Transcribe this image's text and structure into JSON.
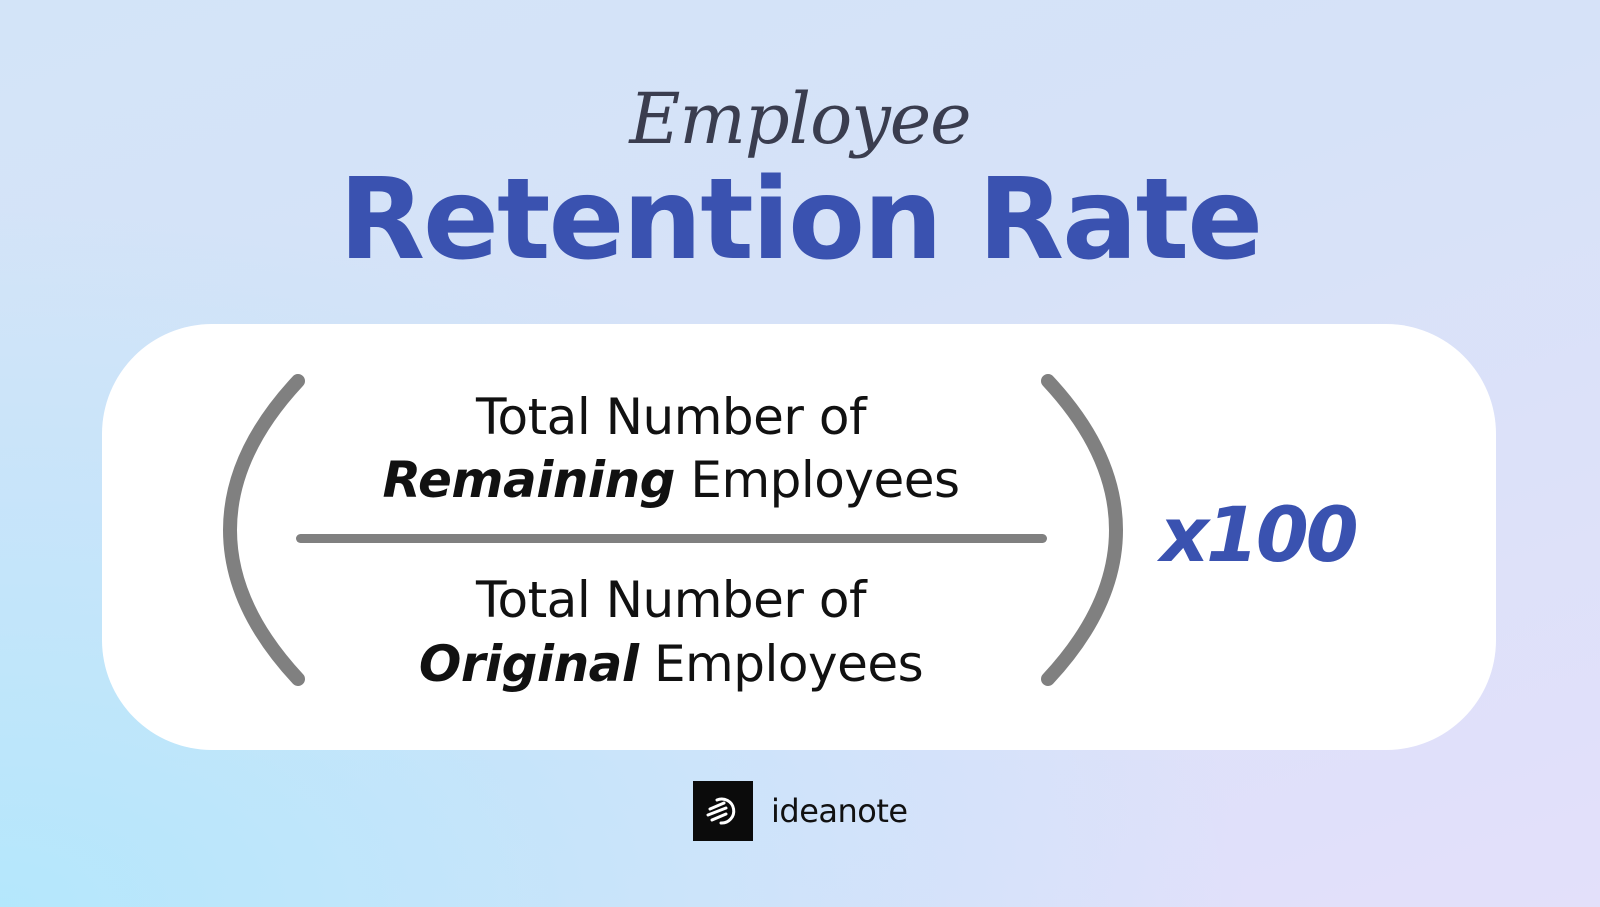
{
  "header": {
    "script_title": "Employee",
    "title": "Retention Rate"
  },
  "formula": {
    "numerator": {
      "line1": "Total Number of",
      "emphasis": "Remaining",
      "rest": "Employees"
    },
    "denominator": {
      "line1": "Total Number of",
      "emphasis": "Original",
      "rest": "Employees"
    },
    "multiplier": "x100"
  },
  "brand": {
    "name": "ideanote",
    "icon": "ideanote-logo-icon"
  },
  "colors": {
    "accent": "#3a52b0",
    "text": "#111111",
    "bracket": "#808080"
  }
}
